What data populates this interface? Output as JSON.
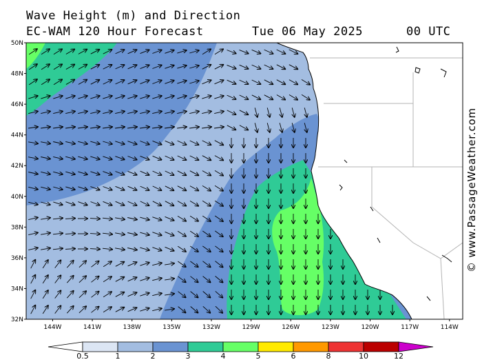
{
  "header": {
    "title": "Wave Height (m) and Direction",
    "model": "EC-WAM 120 Hour Forecast",
    "date": "Tue 06 May 2025",
    "time": "00 UTC"
  },
  "watermark": "© www.PassageWeather.com",
  "map": {
    "lon_range": [
      -146,
      -113
    ],
    "lat_range": [
      32,
      50
    ],
    "lat_labels": [
      "32N",
      "34N",
      "36N",
      "38N",
      "40N",
      "42N",
      "44N",
      "46N",
      "48N",
      "50N"
    ],
    "lon_labels": [
      "144W",
      "141W",
      "138W",
      "135W",
      "132W",
      "129W",
      "126W",
      "123W",
      "120W",
      "117W",
      "114W"
    ]
  },
  "legend": {
    "levels": [
      "0.5",
      "1",
      "2",
      "3",
      "4",
      "5",
      "6",
      "8",
      "10",
      "12"
    ],
    "colors": {
      "lt_0_5": "#ffffff",
      "0_5_1": "#dce6f4",
      "1_2": "#a3bde1",
      "2_3": "#6a93d2",
      "3_4": "#2fcb96",
      "4_5": "#66ff66",
      "5_6": "#ffea00",
      "6_8": "#ff9900",
      "8_10": "#ee3333",
      "10_12": "#bb0000",
      "gt_12": "#cc00cc"
    }
  },
  "colors": {
    "land": "#ffffff",
    "coast": "#000000",
    "border": "#b3b3b3",
    "arrow": "#000000"
  }
}
